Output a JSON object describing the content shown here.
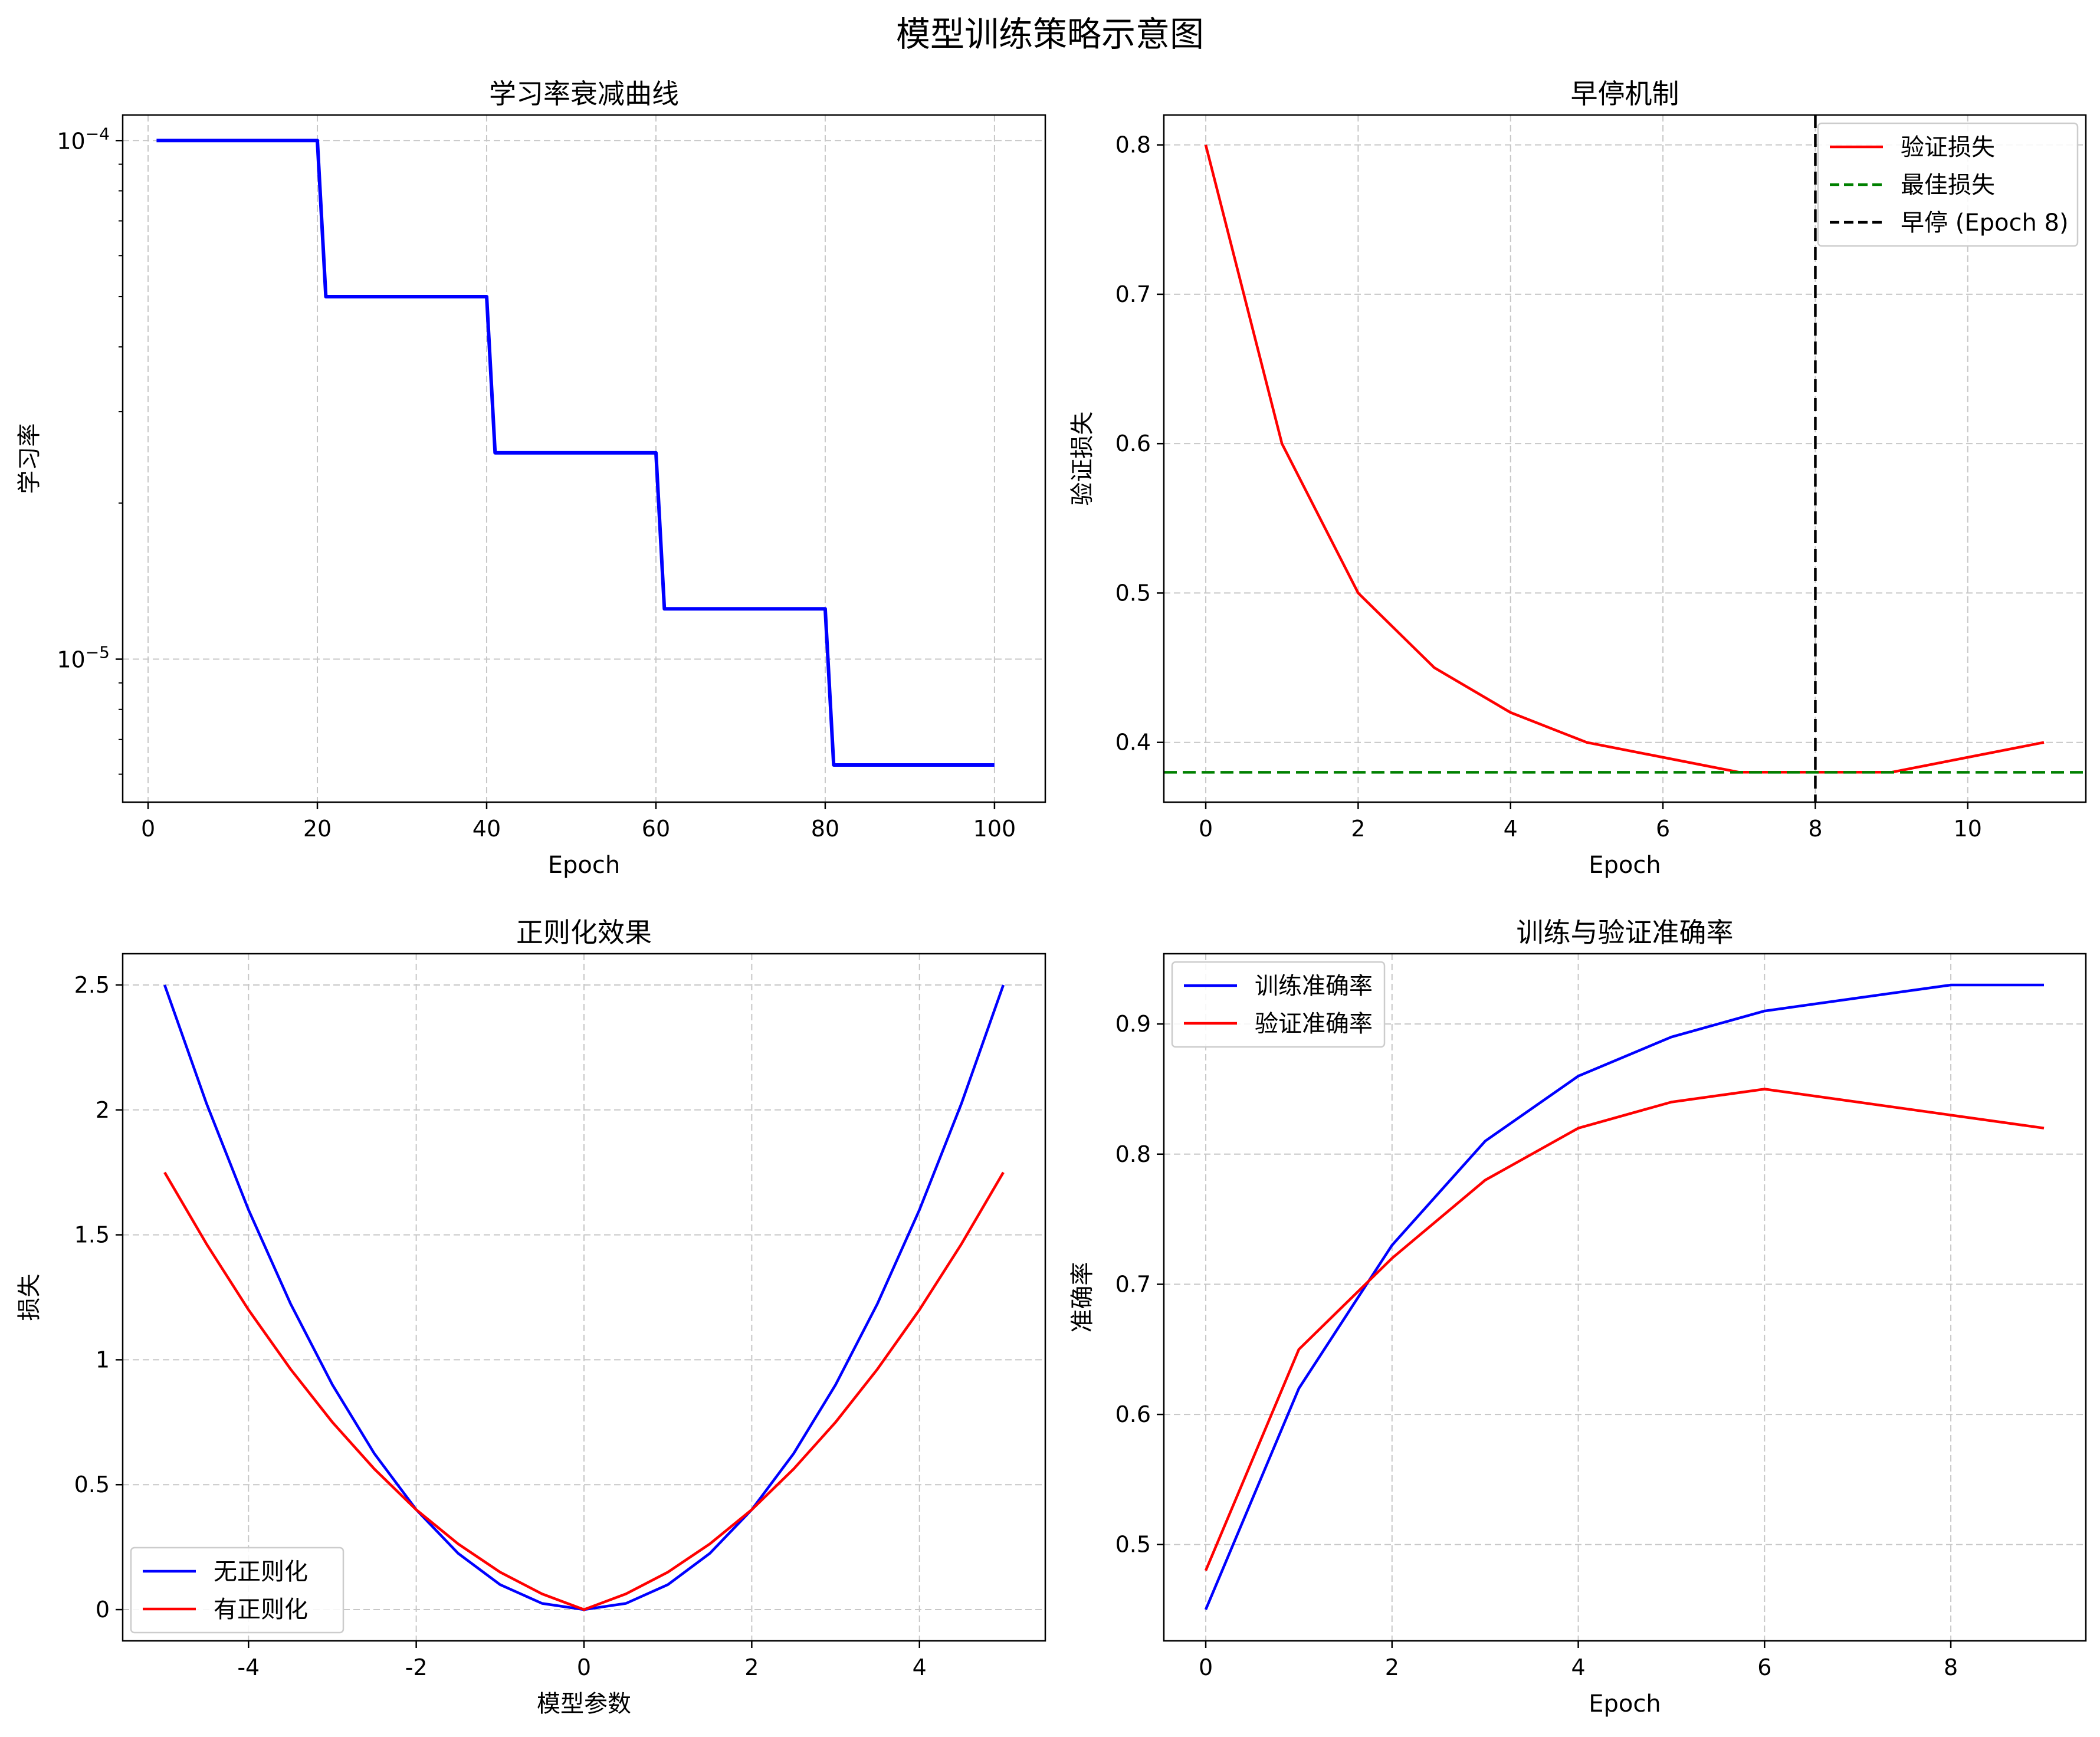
{
  "figure": {
    "title": "模型训练策略示意图"
  },
  "chart_data": [
    {
      "type": "line",
      "title": "学习率衰减曲线",
      "xlabel": "Epoch",
      "ylabel": "学习率",
      "yscale": "log",
      "xlim": [
        -3,
        106
      ],
      "ylim": [
        5.3e-06,
        0.000112
      ],
      "xticks": [
        0,
        20,
        40,
        60,
        80,
        100
      ],
      "yticks": [
        {
          "value": 1e-05,
          "base": "10",
          "exp": "−5"
        },
        {
          "value": 0.0001,
          "base": "10",
          "exp": "−4"
        }
      ],
      "grid": true,
      "series": [
        {
          "name": "",
          "color": "#0000ff",
          "x": [
            1,
            20,
            21,
            40,
            41,
            60,
            61,
            80,
            81,
            100
          ],
          "y": [
            0.0001,
            0.0001,
            5e-05,
            5e-05,
            2.5e-05,
            2.5e-05,
            1.25e-05,
            1.25e-05,
            6.25e-06,
            6.25e-06
          ]
        }
      ]
    },
    {
      "type": "line",
      "title": "早停机制",
      "xlabel": "Epoch",
      "ylabel": "验证损失",
      "xlim": [
        -0.55,
        11.55
      ],
      "ylim": [
        0.36,
        0.82
      ],
      "xticks": [
        0,
        2,
        4,
        6,
        8,
        10
      ],
      "yticks": [
        0.4,
        0.5,
        0.6,
        0.7,
        0.8
      ],
      "grid": true,
      "legend": "top-right",
      "series": [
        {
          "name": "验证损失",
          "color": "#ff0000",
          "x": [
            0,
            1,
            2,
            3,
            4,
            5,
            6,
            7,
            8,
            9,
            10,
            11
          ],
          "y": [
            0.8,
            0.6,
            0.5,
            0.45,
            0.42,
            0.4,
            0.39,
            0.38,
            0.38,
            0.38,
            0.39,
            0.4
          ]
        }
      ],
      "hlines": [
        {
          "name": "最佳损失",
          "y": 0.38,
          "color": "#008000"
        }
      ],
      "vlines": [
        {
          "name": "早停 (Epoch 8)",
          "x": 8,
          "color": "#000000"
        }
      ]
    },
    {
      "type": "line",
      "title": "正则化效果",
      "xlabel": "模型参数",
      "ylabel": "损失",
      "xlim": [
        -5.5,
        5.5
      ],
      "ylim": [
        -0.125,
        2.625
      ],
      "xticks": [
        -4,
        -2,
        0,
        2,
        4
      ],
      "yticks": [
        0.0,
        0.5,
        1.0,
        1.5,
        2.0,
        2.5
      ],
      "grid": true,
      "legend": "lower-left",
      "series": [
        {
          "name": "无正则化",
          "color": "#0000ff",
          "x": [
            -5,
            -4.5,
            -4,
            -3.5,
            -3,
            -2.5,
            -2,
            -1.5,
            -1,
            -0.5,
            0,
            0.5,
            1,
            1.5,
            2,
            2.5,
            3,
            3.5,
            4,
            4.5,
            5
          ],
          "y": [
            2.5,
            2.025,
            1.6,
            1.225,
            0.9,
            0.625,
            0.4,
            0.225,
            0.1,
            0.025,
            0,
            0.025,
            0.1,
            0.225,
            0.4,
            0.625,
            0.9,
            1.225,
            1.6,
            2.025,
            2.5
          ]
        },
        {
          "name": "有正则化",
          "color": "#ff0000",
          "x": [
            -5,
            -4.5,
            -4,
            -3.5,
            -3,
            -2.5,
            -2,
            -1.5,
            -1,
            -0.5,
            0,
            0.5,
            1,
            1.5,
            2,
            2.5,
            3,
            3.5,
            4,
            4.5,
            5
          ],
          "y": [
            1.75,
            1.463,
            1.2,
            0.963,
            0.75,
            0.563,
            0.4,
            0.263,
            0.15,
            0.063,
            0,
            0.063,
            0.15,
            0.263,
            0.4,
            0.563,
            0.75,
            0.963,
            1.2,
            1.463,
            1.75
          ]
        }
      ]
    },
    {
      "type": "line",
      "title": "训练与验证准确率",
      "xlabel": "Epoch",
      "ylabel": "准确率",
      "xlim": [
        -0.45,
        9.45
      ],
      "ylim": [
        0.426,
        0.954
      ],
      "xticks": [
        0,
        2,
        4,
        6,
        8
      ],
      "yticks": [
        0.5,
        0.6,
        0.7,
        0.8,
        0.9
      ],
      "grid": true,
      "legend": "top-left",
      "series": [
        {
          "name": "训练准确率",
          "color": "#0000ff",
          "x": [
            0,
            1,
            2,
            3,
            4,
            5,
            6,
            7,
            8,
            9
          ],
          "y": [
            0.45,
            0.62,
            0.73,
            0.81,
            0.86,
            0.89,
            0.91,
            0.92,
            0.93,
            0.93
          ]
        },
        {
          "name": "验证准确率",
          "color": "#ff0000",
          "x": [
            0,
            1,
            2,
            3,
            4,
            5,
            6,
            7,
            8,
            9
          ],
          "y": [
            0.48,
            0.65,
            0.72,
            0.78,
            0.82,
            0.84,
            0.85,
            0.84,
            0.83,
            0.82
          ]
        }
      ]
    }
  ]
}
